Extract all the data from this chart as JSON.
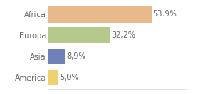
{
  "categories": [
    "Africa",
    "Europa",
    "Asia",
    "America"
  ],
  "values": [
    53.9,
    32.2,
    8.9,
    5.0
  ],
  "labels": [
    "53,9%",
    "32,2%",
    "8,9%",
    "5,0%"
  ],
  "bar_colors": [
    "#e8b98a",
    "#b5c98a",
    "#7080b8",
    "#f0d070"
  ],
  "background_color": "#ffffff",
  "xlim": [
    0,
    72
  ],
  "bar_height": 0.75,
  "label_fontsize": 7.0,
  "tick_fontsize": 7.0,
  "label_color": "#666666",
  "tick_color": "#666666"
}
